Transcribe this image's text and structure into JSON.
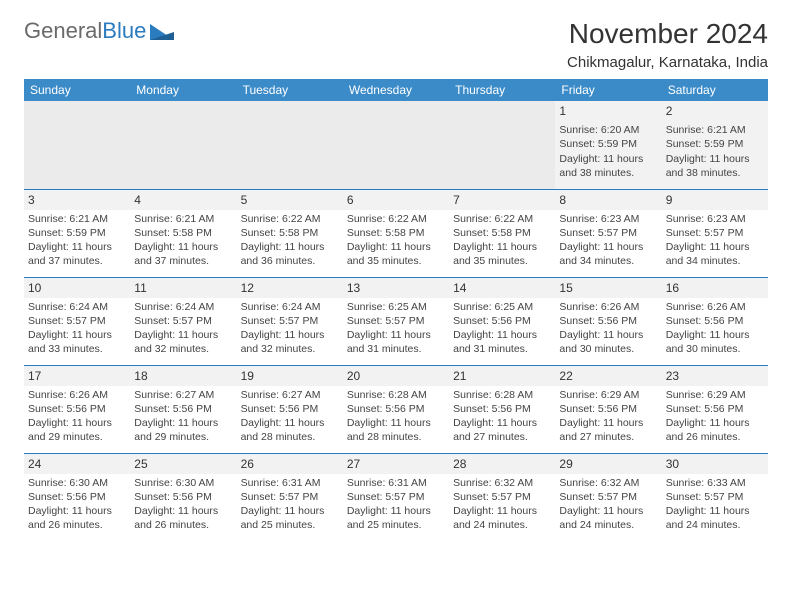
{
  "logo": {
    "text1": "General",
    "text2": "Blue"
  },
  "title": "November 2024",
  "location": "Chikmagalur, Karnataka, India",
  "colors": {
    "header_bg": "#3b8bc9",
    "header_text": "#ffffff",
    "border": "#2b7bbf",
    "shade": "#f2f2f2",
    "empty_shade": "#ebebeb",
    "text": "#444444",
    "logo_gray": "#6a6a6a",
    "logo_blue": "#2b7bbf"
  },
  "daynames": [
    "Sunday",
    "Monday",
    "Tuesday",
    "Wednesday",
    "Thursday",
    "Friday",
    "Saturday"
  ],
  "weeks": [
    [
      {
        "n": "",
        "sr": "",
        "ss": "",
        "dl": ""
      },
      {
        "n": "",
        "sr": "",
        "ss": "",
        "dl": ""
      },
      {
        "n": "",
        "sr": "",
        "ss": "",
        "dl": ""
      },
      {
        "n": "",
        "sr": "",
        "ss": "",
        "dl": ""
      },
      {
        "n": "",
        "sr": "",
        "ss": "",
        "dl": ""
      },
      {
        "n": "1",
        "sr": "Sunrise: 6:20 AM",
        "ss": "Sunset: 5:59 PM",
        "dl": "Daylight: 11 hours and 38 minutes."
      },
      {
        "n": "2",
        "sr": "Sunrise: 6:21 AM",
        "ss": "Sunset: 5:59 PM",
        "dl": "Daylight: 11 hours and 38 minutes."
      }
    ],
    [
      {
        "n": "3",
        "sr": "Sunrise: 6:21 AM",
        "ss": "Sunset: 5:59 PM",
        "dl": "Daylight: 11 hours and 37 minutes."
      },
      {
        "n": "4",
        "sr": "Sunrise: 6:21 AM",
        "ss": "Sunset: 5:58 PM",
        "dl": "Daylight: 11 hours and 37 minutes."
      },
      {
        "n": "5",
        "sr": "Sunrise: 6:22 AM",
        "ss": "Sunset: 5:58 PM",
        "dl": "Daylight: 11 hours and 36 minutes."
      },
      {
        "n": "6",
        "sr": "Sunrise: 6:22 AM",
        "ss": "Sunset: 5:58 PM",
        "dl": "Daylight: 11 hours and 35 minutes."
      },
      {
        "n": "7",
        "sr": "Sunrise: 6:22 AM",
        "ss": "Sunset: 5:58 PM",
        "dl": "Daylight: 11 hours and 35 minutes."
      },
      {
        "n": "8",
        "sr": "Sunrise: 6:23 AM",
        "ss": "Sunset: 5:57 PM",
        "dl": "Daylight: 11 hours and 34 minutes."
      },
      {
        "n": "9",
        "sr": "Sunrise: 6:23 AM",
        "ss": "Sunset: 5:57 PM",
        "dl": "Daylight: 11 hours and 34 minutes."
      }
    ],
    [
      {
        "n": "10",
        "sr": "Sunrise: 6:24 AM",
        "ss": "Sunset: 5:57 PM",
        "dl": "Daylight: 11 hours and 33 minutes."
      },
      {
        "n": "11",
        "sr": "Sunrise: 6:24 AM",
        "ss": "Sunset: 5:57 PM",
        "dl": "Daylight: 11 hours and 32 minutes."
      },
      {
        "n": "12",
        "sr": "Sunrise: 6:24 AM",
        "ss": "Sunset: 5:57 PM",
        "dl": "Daylight: 11 hours and 32 minutes."
      },
      {
        "n": "13",
        "sr": "Sunrise: 6:25 AM",
        "ss": "Sunset: 5:57 PM",
        "dl": "Daylight: 11 hours and 31 minutes."
      },
      {
        "n": "14",
        "sr": "Sunrise: 6:25 AM",
        "ss": "Sunset: 5:56 PM",
        "dl": "Daylight: 11 hours and 31 minutes."
      },
      {
        "n": "15",
        "sr": "Sunrise: 6:26 AM",
        "ss": "Sunset: 5:56 PM",
        "dl": "Daylight: 11 hours and 30 minutes."
      },
      {
        "n": "16",
        "sr": "Sunrise: 6:26 AM",
        "ss": "Sunset: 5:56 PM",
        "dl": "Daylight: 11 hours and 30 minutes."
      }
    ],
    [
      {
        "n": "17",
        "sr": "Sunrise: 6:26 AM",
        "ss": "Sunset: 5:56 PM",
        "dl": "Daylight: 11 hours and 29 minutes."
      },
      {
        "n": "18",
        "sr": "Sunrise: 6:27 AM",
        "ss": "Sunset: 5:56 PM",
        "dl": "Daylight: 11 hours and 29 minutes."
      },
      {
        "n": "19",
        "sr": "Sunrise: 6:27 AM",
        "ss": "Sunset: 5:56 PM",
        "dl": "Daylight: 11 hours and 28 minutes."
      },
      {
        "n": "20",
        "sr": "Sunrise: 6:28 AM",
        "ss": "Sunset: 5:56 PM",
        "dl": "Daylight: 11 hours and 28 minutes."
      },
      {
        "n": "21",
        "sr": "Sunrise: 6:28 AM",
        "ss": "Sunset: 5:56 PM",
        "dl": "Daylight: 11 hours and 27 minutes."
      },
      {
        "n": "22",
        "sr": "Sunrise: 6:29 AM",
        "ss": "Sunset: 5:56 PM",
        "dl": "Daylight: 11 hours and 27 minutes."
      },
      {
        "n": "23",
        "sr": "Sunrise: 6:29 AM",
        "ss": "Sunset: 5:56 PM",
        "dl": "Daylight: 11 hours and 26 minutes."
      }
    ],
    [
      {
        "n": "24",
        "sr": "Sunrise: 6:30 AM",
        "ss": "Sunset: 5:56 PM",
        "dl": "Daylight: 11 hours and 26 minutes."
      },
      {
        "n": "25",
        "sr": "Sunrise: 6:30 AM",
        "ss": "Sunset: 5:56 PM",
        "dl": "Daylight: 11 hours and 26 minutes."
      },
      {
        "n": "26",
        "sr": "Sunrise: 6:31 AM",
        "ss": "Sunset: 5:57 PM",
        "dl": "Daylight: 11 hours and 25 minutes."
      },
      {
        "n": "27",
        "sr": "Sunrise: 6:31 AM",
        "ss": "Sunset: 5:57 PM",
        "dl": "Daylight: 11 hours and 25 minutes."
      },
      {
        "n": "28",
        "sr": "Sunrise: 6:32 AM",
        "ss": "Sunset: 5:57 PM",
        "dl": "Daylight: 11 hours and 24 minutes."
      },
      {
        "n": "29",
        "sr": "Sunrise: 6:32 AM",
        "ss": "Sunset: 5:57 PM",
        "dl": "Daylight: 11 hours and 24 minutes."
      },
      {
        "n": "30",
        "sr": "Sunrise: 6:33 AM",
        "ss": "Sunset: 5:57 PM",
        "dl": "Daylight: 11 hours and 24 minutes."
      }
    ]
  ]
}
